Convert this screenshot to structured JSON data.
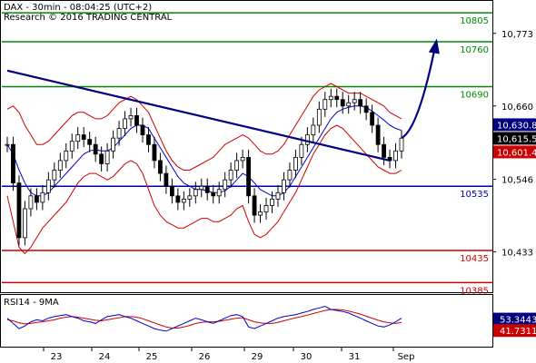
{
  "header": {
    "line1": "DAX - 30min - 08:04:25 (UTC+2)",
    "line2": "Research © 2016 TRADING CENTRAL"
  },
  "rsi_label": "RSI14 - 9MA",
  "colors": {
    "support": "#0000aa",
    "resistance": "#008800",
    "red_level": "#cc0000",
    "trendline": "#000080",
    "bollinger": "#cc0000",
    "ma": "#0000cc",
    "price": "#000000"
  },
  "chart_data": [
    {
      "type": "candlestick",
      "title": "",
      "y_ticks": [
        "10,773",
        "10,660",
        "10,546",
        "10,433"
      ],
      "x_ticks": [
        "23",
        "24",
        "25",
        "26",
        "29",
        "30",
        "31",
        "Sep"
      ],
      "ylim": [
        10370,
        10825
      ],
      "levels": [
        {
          "label": "10805",
          "value": 10805,
          "kind": "resistance"
        },
        {
          "label": "10760",
          "value": 10760,
          "kind": "resistance"
        },
        {
          "label": "10690",
          "value": 10690,
          "kind": "resistance"
        },
        {
          "label": "10535",
          "value": 10535,
          "kind": "support"
        },
        {
          "label": "10435",
          "value": 10435,
          "kind": "red"
        },
        {
          "label": "10385",
          "value": 10385,
          "kind": "red"
        }
      ],
      "price_labels": [
        {
          "label": "10,630.8",
          "value": 10630.8
        },
        {
          "label": "10,615.5",
          "value": 10615.5
        },
        {
          "label": "10,601.4",
          "value": 10601.4
        }
      ],
      "close_series": [
        10600,
        10540,
        10455,
        10500,
        10520,
        10510,
        10525,
        10545,
        10560,
        10575,
        10590,
        10605,
        10615,
        10608,
        10600,
        10585,
        10570,
        10590,
        10610,
        10625,
        10640,
        10645,
        10630,
        10615,
        10600,
        10575,
        10555,
        10535,
        10520,
        10510,
        10515,
        10520,
        10530,
        10535,
        10525,
        10520,
        10530,
        10545,
        10560,
        10575,
        10580,
        10520,
        10490,
        10495,
        10505,
        10515,
        10525,
        10545,
        10560,
        10580,
        10600,
        10615,
        10630,
        10655,
        10670,
        10675,
        10670,
        10660,
        10665,
        10670,
        10660,
        10650,
        10630,
        10600,
        10580,
        10575,
        10590,
        10610
      ],
      "bb_upper_series": [
        10655,
        10660,
        10650,
        10630,
        10615,
        10600,
        10600,
        10605,
        10615,
        10625,
        10635,
        10645,
        10650,
        10650,
        10645,
        10640,
        10640,
        10645,
        10655,
        10665,
        10670,
        10675,
        10670,
        10660,
        10650,
        10630,
        10610,
        10590,
        10575,
        10565,
        10560,
        10560,
        10565,
        10570,
        10575,
        10580,
        10590,
        10600,
        10605,
        10610,
        10615,
        10610,
        10600,
        10590,
        10585,
        10585,
        10590,
        10600,
        10615,
        10630,
        10645,
        10660,
        10675,
        10685,
        10690,
        10695,
        10690,
        10685,
        10680,
        10680,
        10680,
        10675,
        10670,
        10665,
        10660,
        10650,
        10645,
        10640
      ],
      "bb_lower_series": [
        10520,
        10480,
        10440,
        10430,
        10440,
        10455,
        10470,
        10480,
        10490,
        10500,
        10510,
        10525,
        10540,
        10550,
        10555,
        10555,
        10550,
        10545,
        10550,
        10560,
        10570,
        10575,
        10570,
        10555,
        10530,
        10505,
        10490,
        10480,
        10475,
        10470,
        10470,
        10475,
        10480,
        10485,
        10485,
        10480,
        10480,
        10485,
        10490,
        10500,
        10505,
        10480,
        10460,
        10455,
        10460,
        10470,
        10480,
        10495,
        10510,
        10525,
        10545,
        10565,
        10585,
        10600,
        10615,
        10625,
        10630,
        10625,
        10615,
        10605,
        10595,
        10585,
        10575,
        10565,
        10560,
        10555,
        10555,
        10560
      ],
      "ma_series": [
        10600,
        10585,
        10560,
        10540,
        10525,
        10520,
        10520,
        10525,
        10535,
        10545,
        10555,
        10565,
        10575,
        10585,
        10590,
        10592,
        10590,
        10590,
        10595,
        10605,
        10615,
        10625,
        10630,
        10630,
        10625,
        10610,
        10595,
        10580,
        10565,
        10550,
        10540,
        10535,
        10530,
        10530,
        10528,
        10525,
        10525,
        10528,
        10535,
        10545,
        10555,
        10550,
        10540,
        10530,
        10525,
        10520,
        10520,
        10525,
        10535,
        10550,
        10565,
        10580,
        10595,
        10610,
        10625,
        10640,
        10650,
        10655,
        10658,
        10660,
        10660,
        10658,
        10652,
        10645,
        10638,
        10630,
        10625,
        10622
      ],
      "trendline": [
        {
          "i": 0,
          "v": 10715
        },
        {
          "i": 65,
          "v": 10575
        }
      ],
      "projection_arrow": [
        {
          "i": 67,
          "v": 10610
        },
        {
          "i": 73,
          "v": 10765
        }
      ]
    },
    {
      "type": "line",
      "title": "RSI14 - 9MA",
      "y_ticks": [
        "53.3443",
        "41.7311"
      ],
      "ylim": [
        0,
        100
      ],
      "rsi_series": [
        55,
        45,
        35,
        40,
        48,
        52,
        50,
        55,
        58,
        60,
        62,
        58,
        55,
        50,
        48,
        45,
        52,
        58,
        60,
        62,
        58,
        55,
        50,
        45,
        40,
        35,
        32,
        30,
        35,
        40,
        45,
        50,
        55,
        52,
        48,
        45,
        50,
        55,
        60,
        62,
        58,
        38,
        35,
        40,
        45,
        50,
        55,
        58,
        60,
        62,
        65,
        68,
        72,
        75,
        78,
        72,
        70,
        68,
        65,
        60,
        55,
        50,
        45,
        40,
        38,
        42,
        48,
        55
      ],
      "ma_series": [
        52,
        50,
        46,
        44,
        45,
        47,
        48,
        50,
        52,
        55,
        57,
        58,
        57,
        55,
        53,
        51,
        50,
        52,
        54,
        56,
        58,
        58,
        57,
        54,
        50,
        46,
        42,
        38,
        36,
        36,
        38,
        41,
        45,
        47,
        48,
        48,
        49,
        51,
        53,
        55,
        56,
        52,
        48,
        46,
        45,
        45,
        47,
        50,
        53,
        56,
        58,
        61,
        64,
        67,
        70,
        72,
        72,
        71,
        69,
        66,
        63,
        59,
        55,
        51,
        48,
        46,
        45,
        47
      ]
    }
  ]
}
